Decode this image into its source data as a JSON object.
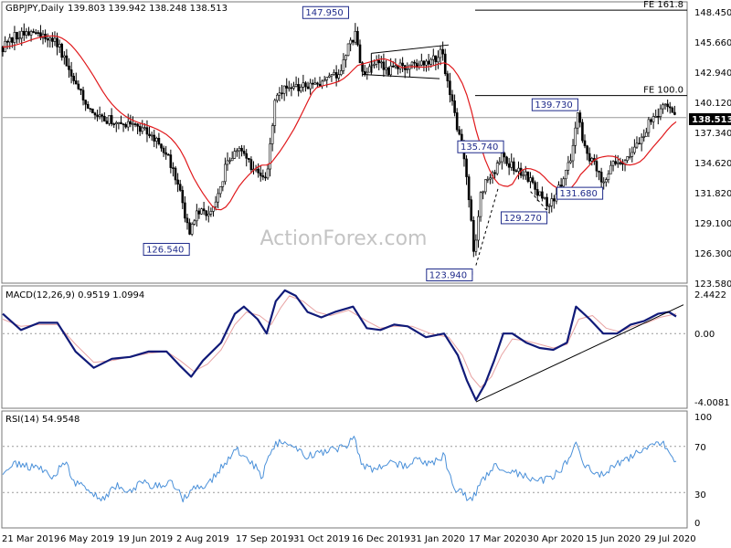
{
  "header": {
    "symbol": "GBPJPY,Daily",
    "ohlc": "139.803 139.942 138.248 138.513"
  },
  "watermark": "ActionForex.com",
  "colors": {
    "candle": "#000000",
    "ma": "#e0191c",
    "macd": "#101a78",
    "signal": "#e8a3a3",
    "rsi": "#4a90d9",
    "callout": "#1e2a8a",
    "grid": "#9a9a9a",
    "last_price_bg": "#000000"
  },
  "chart_data": [
    {
      "type": "candlestick",
      "title": "GBPJPY,Daily",
      "y_ticks": [
        "148.450",
        "145.660",
        "142.940",
        "140.120",
        "137.340",
        "134.620",
        "131.820",
        "129.100",
        "126.300",
        "123.580"
      ],
      "ylim": [
        122.9,
        149.4
      ],
      "last_price": "138.513",
      "levels": [
        {
          "label": "FE 161.8",
          "value": 148.7
        },
        {
          "label": "FE 100.0",
          "value": 140.6
        }
      ],
      "callouts": [
        {
          "label": "147.950",
          "value": 147.95
        },
        {
          "label": "126.540",
          "value": 126.54
        },
        {
          "label": "135.740",
          "value": 135.74
        },
        {
          "label": "123.940",
          "value": 123.94
        },
        {
          "label": "139.730",
          "value": 139.73
        },
        {
          "label": "129.270",
          "value": 129.27
        },
        {
          "label": "131.680",
          "value": 131.68
        }
      ],
      "close_path": [
        [
          0,
          145.2
        ],
        [
          15,
          146.3
        ],
        [
          30,
          146.8
        ],
        [
          45,
          146.0
        ],
        [
          60,
          145.5
        ],
        [
          75,
          142.8
        ],
        [
          90,
          140.2
        ],
        [
          105,
          138.5
        ],
        [
          120,
          138.3
        ],
        [
          135,
          137.8
        ],
        [
          150,
          137.4
        ],
        [
          165,
          136.8
        ],
        [
          180,
          135.3
        ],
        [
          195,
          131.5
        ],
        [
          205,
          127.2
        ],
        [
          215,
          129.8
        ],
        [
          230,
          129.5
        ],
        [
          245,
          133.8
        ],
        [
          260,
          135.5
        ],
        [
          275,
          133.5
        ],
        [
          290,
          132.6
        ],
        [
          300,
          140.6
        ],
        [
          310,
          141.4
        ],
        [
          325,
          141.2
        ],
        [
          340,
          141.8
        ],
        [
          355,
          142.1
        ],
        [
          370,
          142.8
        ],
        [
          380,
          145.2
        ],
        [
          388,
          146.5
        ],
        [
          395,
          142.6
        ],
        [
          410,
          143.8
        ],
        [
          425,
          142.9
        ],
        [
          440,
          143.5
        ],
        [
          455,
          143.3
        ],
        [
          470,
          143.7
        ],
        [
          482,
          144.8
        ],
        [
          490,
          141.5
        ],
        [
          500,
          137.0
        ],
        [
          505,
          135.6
        ],
        [
          512,
          131.0
        ],
        [
          518,
          125.3
        ],
        [
          525,
          131.0
        ],
        [
          532,
          133.0
        ],
        [
          540,
          133.5
        ],
        [
          548,
          134.8
        ],
        [
          560,
          133.9
        ],
        [
          575,
          133.0
        ],
        [
          590,
          131.2
        ],
        [
          600,
          130.0
        ],
        [
          612,
          131.9
        ],
        [
          625,
          134.8
        ],
        [
          632,
          139.2
        ],
        [
          640,
          135.2
        ],
        [
          650,
          134.2
        ],
        [
          660,
          132.4
        ],
        [
          670,
          134.2
        ],
        [
          685,
          134.6
        ],
        [
          700,
          136.0
        ],
        [
          712,
          138.4
        ],
        [
          722,
          139.1
        ],
        [
          730,
          139.7
        ],
        [
          740,
          138.5
        ]
      ]
    },
    {
      "type": "line",
      "title": "MACD(12,26,9) 0.9519 1.0994",
      "y_ticks": [
        "2.4422",
        "0.00",
        "-4.0081"
      ],
      "ylim": [
        -4.1,
        2.6
      ],
      "macd_path": [
        [
          0,
          1.1
        ],
        [
          20,
          0.2
        ],
        [
          40,
          0.6
        ],
        [
          60,
          0.6
        ],
        [
          80,
          -1.0
        ],
        [
          100,
          -1.9
        ],
        [
          120,
          -1.4
        ],
        [
          140,
          -1.3
        ],
        [
          160,
          -1.0
        ],
        [
          180,
          -1.0
        ],
        [
          195,
          -1.8
        ],
        [
          207,
          -2.4
        ],
        [
          220,
          -1.5
        ],
        [
          240,
          -0.5
        ],
        [
          255,
          1.1
        ],
        [
          265,
          1.5
        ],
        [
          280,
          0.8
        ],
        [
          290,
          0.0
        ],
        [
          300,
          1.8
        ],
        [
          310,
          2.4
        ],
        [
          322,
          2.1
        ],
        [
          335,
          1.2
        ],
        [
          350,
          0.9
        ],
        [
          365,
          1.2
        ],
        [
          385,
          1.5
        ],
        [
          400,
          0.3
        ],
        [
          415,
          0.2
        ],
        [
          430,
          0.5
        ],
        [
          445,
          0.4
        ],
        [
          465,
          -0.2
        ],
        [
          485,
          0.0
        ],
        [
          500,
          -1.2
        ],
        [
          510,
          -2.6
        ],
        [
          520,
          -3.7
        ],
        [
          530,
          -2.8
        ],
        [
          540,
          -1.5
        ],
        [
          550,
          0.0
        ],
        [
          560,
          0.0
        ],
        [
          575,
          -0.5
        ],
        [
          590,
          -0.8
        ],
        [
          605,
          -0.9
        ],
        [
          620,
          -0.5
        ],
        [
          630,
          1.5
        ],
        [
          645,
          0.8
        ],
        [
          660,
          0.0
        ],
        [
          675,
          0.0
        ],
        [
          690,
          0.5
        ],
        [
          705,
          0.7
        ],
        [
          720,
          1.1
        ],
        [
          732,
          1.2
        ],
        [
          740,
          0.95
        ]
      ],
      "signal_path": [
        [
          0,
          0.8
        ],
        [
          20,
          0.4
        ],
        [
          40,
          0.5
        ],
        [
          60,
          0.5
        ],
        [
          80,
          -0.6
        ],
        [
          100,
          -1.6
        ],
        [
          120,
          -1.5
        ],
        [
          140,
          -1.3
        ],
        [
          160,
          -1.1
        ],
        [
          180,
          -1.0
        ],
        [
          195,
          -1.5
        ],
        [
          210,
          -2.1
        ],
        [
          225,
          -1.7
        ],
        [
          240,
          -0.9
        ],
        [
          255,
          0.5
        ],
        [
          268,
          1.2
        ],
        [
          282,
          1.0
        ],
        [
          295,
          0.5
        ],
        [
          305,
          1.4
        ],
        [
          315,
          2.1
        ],
        [
          330,
          1.8
        ],
        [
          345,
          1.2
        ],
        [
          360,
          1.0
        ],
        [
          380,
          1.3
        ],
        [
          400,
          0.7
        ],
        [
          415,
          0.3
        ],
        [
          430,
          0.4
        ],
        [
          450,
          0.4
        ],
        [
          470,
          0.0
        ],
        [
          490,
          -0.2
        ],
        [
          505,
          -1.2
        ],
        [
          515,
          -2.4
        ],
        [
          525,
          -3.0
        ],
        [
          537,
          -2.4
        ],
        [
          548,
          -1.2
        ],
        [
          560,
          -0.3
        ],
        [
          575,
          -0.4
        ],
        [
          590,
          -0.6
        ],
        [
          605,
          -0.8
        ],
        [
          620,
          -0.6
        ],
        [
          633,
          0.8
        ],
        [
          648,
          1.0
        ],
        [
          663,
          0.3
        ],
        [
          678,
          0.1
        ],
        [
          692,
          0.4
        ],
        [
          708,
          0.6
        ],
        [
          722,
          0.9
        ],
        [
          740,
          1.1
        ]
      ],
      "trendline": [
        [
          520,
          -3.8
        ],
        [
          748,
          1.6
        ]
      ]
    },
    {
      "type": "line",
      "title": "RSI(14) 54.9548",
      "y_ticks": [
        "100",
        "70",
        "30",
        "0"
      ],
      "ylim": [
        0,
        100
      ],
      "guides": [
        70,
        30
      ],
      "rsi_path": [
        [
          0,
          49
        ],
        [
          15,
          55
        ],
        [
          30,
          52
        ],
        [
          45,
          50
        ],
        [
          55,
          44
        ],
        [
          68,
          56
        ],
        [
          80,
          38
        ],
        [
          95,
          32
        ],
        [
          110,
          25
        ],
        [
          125,
          36
        ],
        [
          140,
          32
        ],
        [
          155,
          39
        ],
        [
          170,
          35
        ],
        [
          185,
          40
        ],
        [
          198,
          24
        ],
        [
          210,
          34
        ],
        [
          225,
          35
        ],
        [
          240,
          52
        ],
        [
          258,
          67
        ],
        [
          270,
          60
        ],
        [
          285,
          44
        ],
        [
          295,
          68
        ],
        [
          305,
          75
        ],
        [
          320,
          68
        ],
        [
          335,
          62
        ],
        [
          350,
          64
        ],
        [
          365,
          68
        ],
        [
          378,
          70
        ],
        [
          386,
          79
        ],
        [
          395,
          52
        ],
        [
          410,
          50
        ],
        [
          425,
          58
        ],
        [
          440,
          52
        ],
        [
          455,
          58
        ],
        [
          470,
          55
        ],
        [
          485,
          62
        ],
        [
          495,
          34
        ],
        [
          505,
          30
        ],
        [
          515,
          22
        ],
        [
          525,
          38
        ],
        [
          540,
          52
        ],
        [
          555,
          50
        ],
        [
          570,
          45
        ],
        [
          585,
          40
        ],
        [
          600,
          42
        ],
        [
          615,
          50
        ],
        [
          630,
          72
        ],
        [
          640,
          54
        ],
        [
          655,
          45
        ],
        [
          670,
          52
        ],
        [
          685,
          58
        ],
        [
          700,
          66
        ],
        [
          712,
          72
        ],
        [
          725,
          74
        ],
        [
          735,
          65
        ],
        [
          740,
          55
        ]
      ]
    }
  ],
  "x_axis": {
    "labels": [
      "21 Mar 2019",
      "6 May 2019",
      "19 Jun 2019",
      "2 Aug 2019",
      "17 Sep 2019",
      "31 Oct 2019",
      "16 Dec 2019",
      "31 Jan 2020",
      "17 Mar 2020",
      "30 Apr 2020",
      "15 Jun 2020",
      "29 Jul 2020"
    ]
  }
}
